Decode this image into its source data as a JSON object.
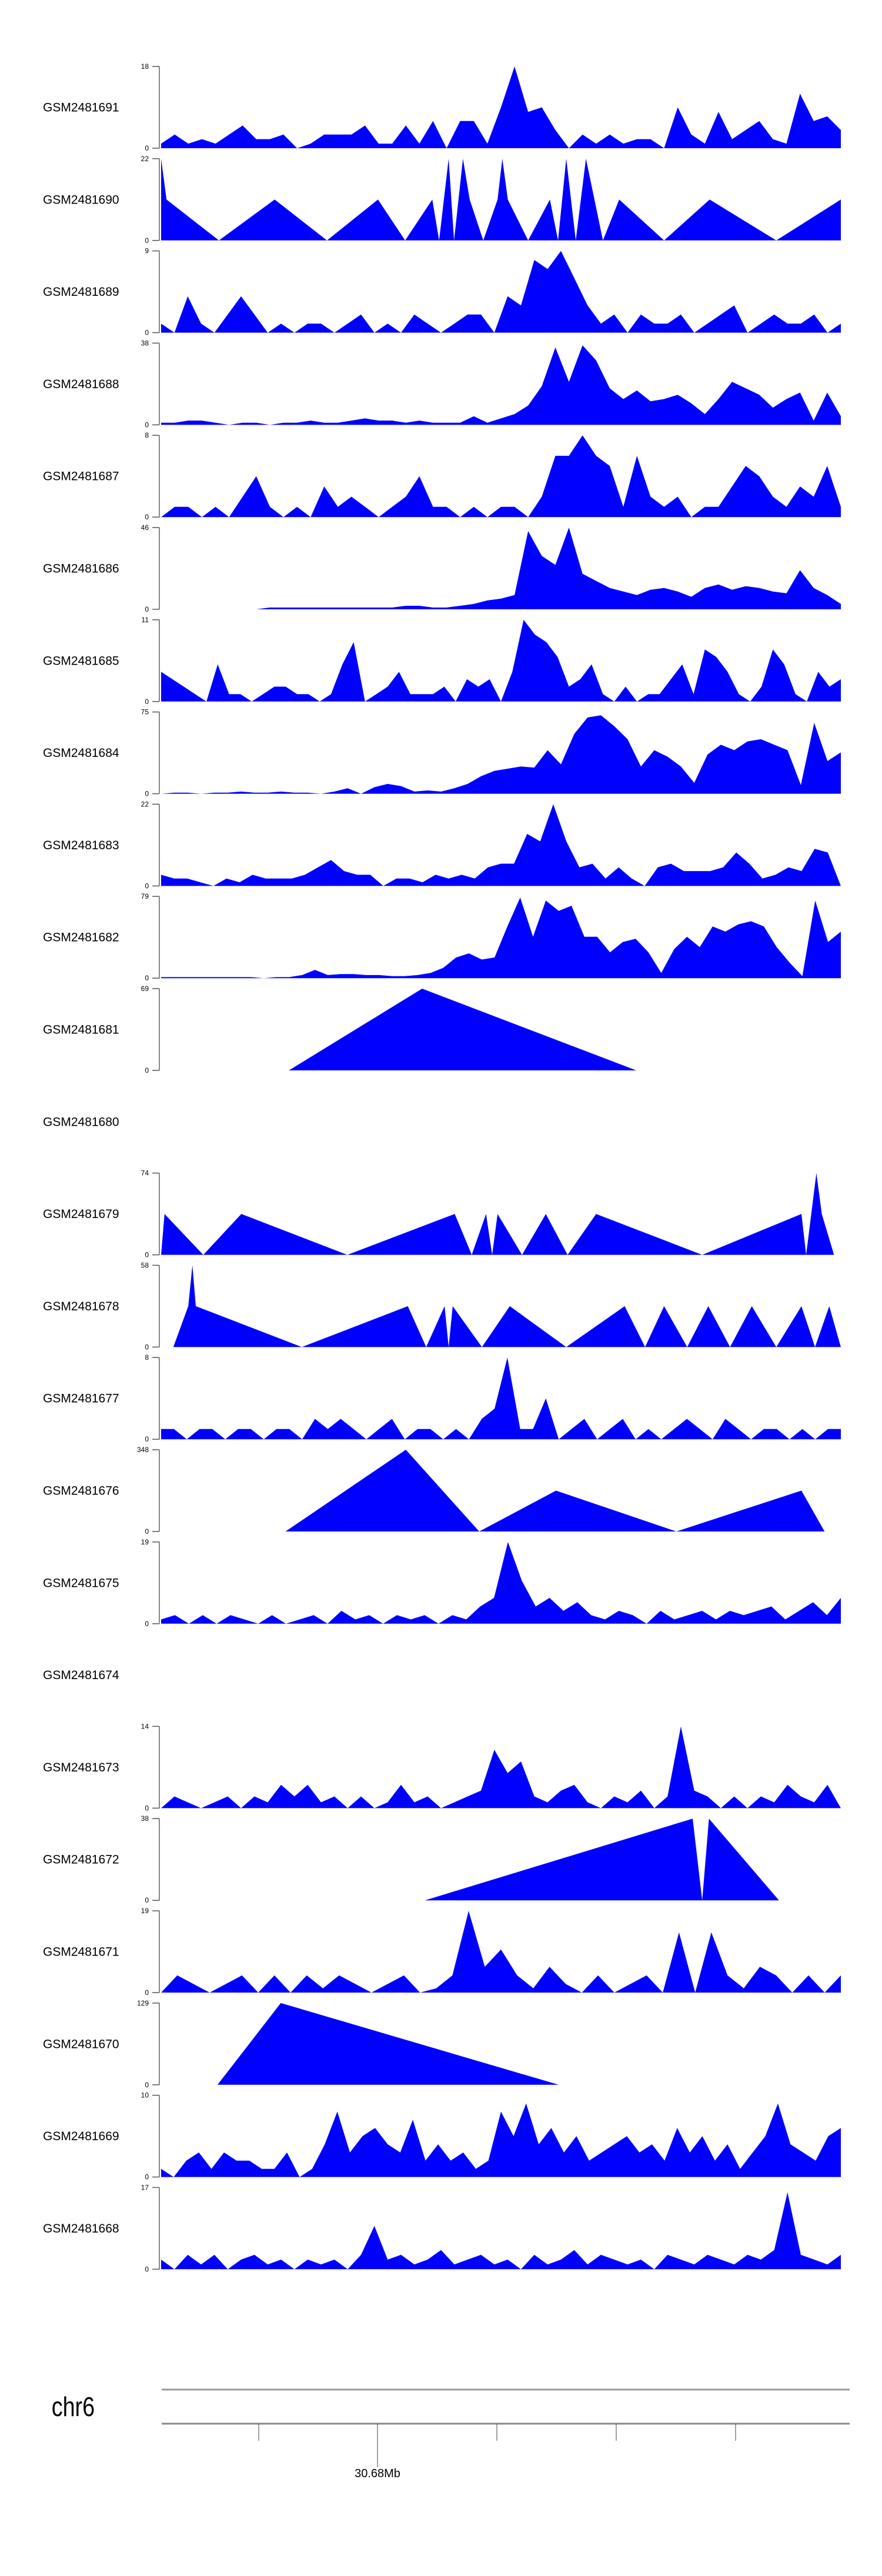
{
  "chart_data": {
    "type": "area",
    "title": "",
    "chromosome": "chr6",
    "axis_label": "30.68Mb",
    "x_units": "relative position in window (0-100)",
    "fill_color": "#0000ff",
    "axis_color": "#808080",
    "tracks": [
      {
        "name": "GSM2481691",
        "ymax": 18,
        "values": [
          1,
          3,
          1,
          2,
          1,
          3,
          5,
          2,
          2,
          3,
          0,
          1,
          3,
          3,
          3,
          5,
          1,
          1,
          5,
          1,
          6,
          0,
          6,
          6,
          1,
          9,
          18,
          8,
          9,
          4,
          0,
          3,
          1,
          3,
          1,
          2,
          2,
          0,
          9,
          3,
          1,
          8,
          2,
          4,
          6,
          2,
          1,
          12,
          6,
          7,
          4
        ]
      },
      {
        "name": "GSM2481690",
        "ymax": 22,
        "points": [
          [
            0,
            0
          ],
          [
            0,
            22
          ],
          [
            0.8,
            11
          ],
          [
            8.5,
            0
          ],
          [
            16.7,
            11
          ],
          [
            24.4,
            0
          ],
          [
            31.9,
            11
          ],
          [
            35.9,
            0
          ],
          [
            39.9,
            11
          ],
          [
            40.9,
            0
          ],
          [
            42.3,
            22
          ],
          [
            43.1,
            0
          ],
          [
            44.4,
            22
          ],
          [
            45.4,
            11
          ],
          [
            47.4,
            0
          ],
          [
            49.5,
            11
          ],
          [
            50.2,
            22
          ],
          [
            51,
            11
          ],
          [
            54,
            0
          ],
          [
            57.2,
            11
          ],
          [
            58.4,
            0
          ],
          [
            59.6,
            22
          ],
          [
            61,
            0
          ],
          [
            62.5,
            22
          ],
          [
            65,
            0
          ],
          [
            67.4,
            11
          ],
          [
            74,
            0
          ],
          [
            80.7,
            11
          ],
          [
            90.5,
            0
          ],
          [
            100,
            11
          ],
          [
            100,
            0
          ]
        ]
      },
      {
        "name": "GSM2481689",
        "ymax": 9,
        "values": [
          1,
          0,
          4,
          1,
          0,
          2,
          4,
          2,
          0,
          1,
          0,
          1,
          1,
          0,
          1,
          2,
          0,
          1,
          0,
          2,
          1,
          0,
          1,
          2,
          2,
          0,
          4,
          3,
          8,
          7,
          9,
          6,
          3,
          1,
          2,
          0,
          2,
          1,
          1,
          2,
          0,
          1,
          2,
          3,
          0,
          1,
          2,
          1,
          1,
          2,
          0,
          1
        ]
      },
      {
        "name": "GSM2481688",
        "ymax": 38,
        "values": [
          1,
          1,
          2,
          2,
          1,
          0,
          1,
          1,
          0,
          1,
          1,
          2,
          1,
          1,
          2,
          3,
          2,
          2,
          1,
          2,
          1,
          1,
          1,
          4,
          1,
          3,
          5,
          9,
          18,
          36,
          20,
          37,
          30,
          17,
          12,
          16,
          11,
          12,
          14,
          10,
          5,
          12,
          20,
          17,
          14,
          8,
          12,
          15,
          2,
          15,
          4
        ]
      },
      {
        "name": "GSM2481687",
        "ymax": 8,
        "values": [
          0,
          1,
          1,
          0,
          1,
          0,
          2,
          4,
          1,
          0,
          1,
          0,
          3,
          1,
          2,
          1,
          0,
          1,
          2,
          4,
          1,
          1,
          0,
          1,
          0,
          1,
          1,
          0,
          2,
          6,
          6,
          8,
          6,
          5,
          1,
          6,
          2,
          1,
          2,
          0,
          1,
          1,
          3,
          5,
          4,
          2,
          1,
          3,
          2,
          5,
          1
        ]
      },
      {
        "name": "GSM2481686",
        "ymax": 46,
        "values": [
          0,
          0,
          0,
          0,
          0,
          0,
          0,
          0,
          1,
          1,
          1,
          1,
          1,
          1,
          1,
          1,
          1,
          1,
          2,
          2,
          1,
          1,
          2,
          3,
          5,
          6,
          8,
          44,
          30,
          25,
          46,
          20,
          16,
          12,
          10,
          8,
          11,
          12,
          10,
          7,
          12,
          14,
          11,
          13,
          12,
          10,
          9,
          22,
          12,
          8,
          3
        ]
      },
      {
        "name": "GSM2481685",
        "ymax": 11,
        "values": [
          4,
          3,
          2,
          1,
          0,
          5,
          1,
          1,
          0,
          1,
          2,
          2,
          1,
          1,
          0,
          1,
          5,
          8,
          0,
          1,
          2,
          4,
          1,
          1,
          1,
          2,
          0,
          3,
          2,
          3,
          0,
          4,
          11,
          9,
          8,
          6,
          2,
          3,
          5,
          1,
          0,
          2,
          0,
          1,
          1,
          3,
          5,
          1,
          7,
          6,
          4,
          1,
          0,
          2,
          7,
          5,
          1,
          0,
          4,
          2,
          3
        ]
      },
      {
        "name": "GSM2481684",
        "ymax": 75,
        "values": [
          0,
          1,
          1,
          0,
          1,
          1,
          2,
          1,
          1,
          2,
          1,
          1,
          0,
          2,
          5,
          0,
          6,
          9,
          7,
          2,
          3,
          2,
          5,
          9,
          16,
          21,
          23,
          25,
          24,
          40,
          27,
          55,
          70,
          72,
          62,
          50,
          25,
          40,
          34,
          25,
          10,
          36,
          45,
          40,
          48,
          50,
          45,
          40,
          8,
          65,
          30,
          38
        ]
      },
      {
        "name": "GSM2481683",
        "ymax": 22,
        "values": [
          3,
          2,
          2,
          1,
          0,
          2,
          1,
          3,
          2,
          2,
          2,
          3,
          5,
          7,
          4,
          3,
          3,
          0,
          2,
          2,
          1,
          3,
          2,
          3,
          2,
          5,
          6,
          6,
          14,
          12,
          22,
          12,
          5,
          6,
          2,
          5,
          2,
          0,
          5,
          6,
          4,
          4,
          4,
          5,
          9,
          6,
          2,
          3,
          5,
          4,
          10,
          9,
          0
        ]
      },
      {
        "name": "GSM2481682",
        "ymax": 79,
        "values": [
          1,
          1,
          1,
          1,
          1,
          1,
          1,
          1,
          0,
          1,
          1,
          3,
          8,
          3,
          4,
          4,
          3,
          3,
          2,
          2,
          3,
          5,
          10,
          20,
          24,
          18,
          20,
          50,
          78,
          40,
          75,
          65,
          70,
          40,
          40,
          25,
          35,
          38,
          25,
          5,
          28,
          40,
          30,
          50,
          45,
          52,
          55,
          50,
          30,
          15,
          2,
          75,
          35,
          45
        ]
      },
      {
        "name": "GSM2481681",
        "ymax": 69,
        "points": [
          [
            18.8,
            0
          ],
          [
            38.4,
            69
          ],
          [
            69.9,
            0
          ]
        ]
      },
      {
        "name": "GSM2481680",
        "ymax": null,
        "points": []
      },
      {
        "name": "GSM2481679",
        "ymax": 74,
        "points": [
          [
            0,
            0
          ],
          [
            0.5,
            37
          ],
          [
            6.2,
            0
          ],
          [
            11.8,
            37
          ],
          [
            27.4,
            0
          ],
          [
            43.2,
            37
          ],
          [
            45.7,
            0
          ],
          [
            47.8,
            37
          ],
          [
            48.7,
            0
          ],
          [
            49.5,
            37
          ],
          [
            53.1,
            0
          ],
          [
            56.6,
            37
          ],
          [
            59.8,
            0
          ],
          [
            64,
            37
          ],
          [
            79.6,
            0
          ],
          [
            94.2,
            37
          ],
          [
            94.9,
            0
          ],
          [
            96.4,
            74
          ],
          [
            97.2,
            37
          ],
          [
            99,
            0
          ]
        ]
      },
      {
        "name": "GSM2481678",
        "ymax": 58,
        "points": [
          [
            1.8,
            0
          ],
          [
            4,
            29
          ],
          [
            4.6,
            58
          ],
          [
            5.1,
            29
          ],
          [
            20.7,
            0
          ],
          [
            36.3,
            29
          ],
          [
            39,
            0
          ],
          [
            41.7,
            29
          ],
          [
            42.3,
            0
          ],
          [
            42.9,
            29
          ],
          [
            47.2,
            0
          ],
          [
            51.3,
            29
          ],
          [
            59.6,
            0
          ],
          [
            68.2,
            29
          ],
          [
            71.2,
            0
          ],
          [
            74,
            29
          ],
          [
            77.4,
            0
          ],
          [
            80.5,
            29
          ],
          [
            83.7,
            0
          ],
          [
            86.9,
            29
          ],
          [
            90.5,
            0
          ],
          [
            94.2,
            29
          ],
          [
            96.2,
            0
          ],
          [
            98.3,
            29
          ],
          [
            100,
            0
          ]
        ]
      },
      {
        "name": "GSM2481677",
        "ymax": 8,
        "values": [
          1,
          1,
          0,
          1,
          1,
          0,
          1,
          1,
          0,
          1,
          1,
          0,
          2,
          1,
          2,
          1,
          0,
          1,
          2,
          0,
          1,
          1,
          0,
          1,
          0,
          2,
          3,
          8,
          1,
          1,
          4,
          0,
          1,
          2,
          0,
          1,
          2,
          0,
          1,
          0,
          1,
          2,
          1,
          0,
          2,
          1,
          0,
          1,
          1,
          0,
          1,
          0,
          1,
          1
        ]
      },
      {
        "name": "GSM2481676",
        "ymax": 348,
        "points": [
          [
            18.3,
            0
          ],
          [
            36,
            348
          ],
          [
            46.8,
            0
          ],
          [
            58.1,
            174
          ],
          [
            75.8,
            0
          ],
          [
            94.2,
            174
          ],
          [
            97.6,
            0
          ]
        ]
      },
      {
        "name": "GSM2481675",
        "ymax": 19,
        "values": [
          1,
          2,
          0,
          2,
          0,
          2,
          1,
          0,
          2,
          0,
          1,
          2,
          0,
          3,
          1,
          2,
          0,
          2,
          1,
          2,
          0,
          2,
          1,
          4,
          6,
          19,
          10,
          4,
          6,
          3,
          5,
          2,
          1,
          3,
          2,
          0,
          3,
          1,
          2,
          3,
          1,
          3,
          2,
          3,
          4,
          1,
          3,
          5,
          2,
          6
        ]
      },
      {
        "name": "GSM2481674",
        "ymax": null,
        "points": []
      },
      {
        "name": "GSM2481673",
        "ymax": 14,
        "values": [
          0,
          2,
          1,
          0,
          1,
          2,
          0,
          2,
          1,
          4,
          2,
          4,
          1,
          2,
          0,
          2,
          0,
          1,
          4,
          1,
          2,
          0,
          1,
          2,
          3,
          10,
          6,
          8,
          2,
          1,
          3,
          4,
          1,
          0,
          2,
          1,
          3,
          0,
          2,
          14,
          3,
          2,
          0,
          2,
          0,
          2,
          1,
          4,
          2,
          1,
          4,
          0
        ]
      },
      {
        "name": "GSM2481672",
        "ymax": 38,
        "points": [
          [
            38.8,
            0
          ],
          [
            78.2,
            38
          ],
          [
            79.6,
            0
          ],
          [
            80.6,
            38
          ],
          [
            90.9,
            0
          ]
        ]
      },
      {
        "name": "GSM2481671",
        "ymax": 19,
        "values": [
          0,
          4,
          2,
          0,
          2,
          4,
          0,
          4,
          0,
          4,
          1,
          4,
          2,
          0,
          2,
          4,
          0,
          1,
          4,
          19,
          6,
          10,
          4,
          1,
          6,
          2,
          0,
          4,
          0,
          2,
          4,
          0,
          14,
          0,
          14,
          4,
          1,
          6,
          4,
          0,
          4,
          0,
          4
        ]
      },
      {
        "name": "GSM2481670",
        "ymax": 129,
        "points": [
          [
            8.3,
            0
          ],
          [
            17.6,
            129
          ],
          [
            58.5,
            0
          ]
        ]
      },
      {
        "name": "GSM2481669",
        "ymax": 10,
        "values": [
          1,
          0,
          2,
          3,
          1,
          3,
          2,
          2,
          1,
          1,
          3,
          0,
          1,
          4,
          8,
          3,
          5,
          6,
          4,
          3,
          7,
          2,
          4,
          2,
          3,
          1,
          2,
          8,
          5,
          9,
          4,
          6,
          3,
          5,
          2,
          3,
          4,
          5,
          3,
          4,
          2,
          6,
          3,
          5,
          2,
          4,
          1,
          3,
          5,
          9,
          4,
          3,
          2,
          5,
          6
        ]
      },
      {
        "name": "GSM2481668",
        "ymax": 17,
        "values": [
          2,
          0,
          3,
          1,
          3,
          0,
          2,
          3,
          1,
          2,
          0,
          2,
          1,
          2,
          0,
          3,
          9,
          2,
          3,
          1,
          2,
          4,
          1,
          2,
          3,
          1,
          2,
          0,
          3,
          1,
          2,
          4,
          1,
          3,
          2,
          1,
          2,
          0,
          3,
          2,
          1,
          3,
          2,
          1,
          3,
          2,
          4,
          16,
          3,
          2,
          1,
          3
        ]
      }
    ]
  }
}
